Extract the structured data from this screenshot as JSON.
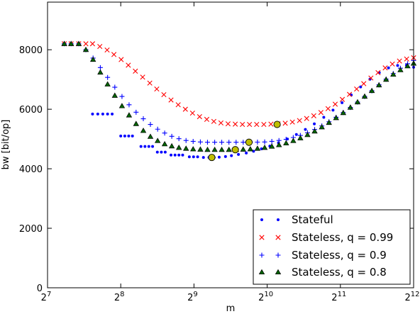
{
  "chart_data": {
    "type": "scatter",
    "xlabel": "m",
    "ylabel": "bw [bit/op]",
    "x_scale": "log2",
    "xlim": [
      128,
      4096
    ],
    "ylim": [
      0,
      9600
    ],
    "x_ticks": [
      {
        "value": 128,
        "base": "2",
        "exp": "7"
      },
      {
        "value": 256,
        "base": "2",
        "exp": "8"
      },
      {
        "value": 512,
        "base": "2",
        "exp": "9"
      },
      {
        "value": 1024,
        "base": "2",
        "exp": "10"
      },
      {
        "value": 2048,
        "base": "2",
        "exp": "11"
      },
      {
        "value": 4096,
        "base": "2",
        "exp": "12"
      }
    ],
    "y_ticks": [
      {
        "value": 0,
        "label": "0"
      },
      {
        "value": 2000,
        "label": "2000"
      },
      {
        "value": 4000,
        "label": "4000"
      },
      {
        "value": 6000,
        "label": "6000"
      },
      {
        "value": 8000,
        "label": "8000"
      }
    ],
    "grid": false,
    "legend_position": "bottom-right",
    "series": [
      {
        "name": "Stateful",
        "marker": "dot",
        "color": "#0000ff",
        "points": [
          [
            150,
            8200
          ],
          [
            160,
            8200
          ],
          [
            172,
            8200
          ],
          [
            196,
            5840
          ],
          [
            206,
            5840
          ],
          [
            216,
            5840
          ],
          [
            226,
            5840
          ],
          [
            236,
            5840
          ],
          [
            256,
            5100
          ],
          [
            266,
            5100
          ],
          [
            276,
            5100
          ],
          [
            286,
            5100
          ],
          [
            310,
            4750
          ],
          [
            322,
            4750
          ],
          [
            334,
            4750
          ],
          [
            346,
            4750
          ],
          [
            362,
            4560
          ],
          [
            376,
            4560
          ],
          [
            390,
            4560
          ],
          [
            412,
            4460
          ],
          [
            428,
            4460
          ],
          [
            444,
            4460
          ],
          [
            460,
            4460
          ],
          [
            490,
            4400
          ],
          [
            510,
            4400
          ],
          [
            530,
            4400
          ],
          [
            560,
            4380
          ],
          [
            590,
            4380
          ],
          [
            620,
            4380
          ],
          [
            650,
            4390
          ],
          [
            690,
            4410
          ],
          [
            730,
            4440
          ],
          [
            780,
            4480
          ],
          [
            840,
            4530
          ],
          [
            900,
            4590
          ],
          [
            970,
            4670
          ],
          [
            1050,
            4760
          ],
          [
            1140,
            4870
          ],
          [
            1240,
            5000
          ],
          [
            1350,
            5150
          ],
          [
            1470,
            5320
          ],
          [
            1600,
            5510
          ],
          [
            1750,
            5730
          ],
          [
            1910,
            5970
          ],
          [
            2080,
            6220
          ],
          [
            2270,
            6480
          ],
          [
            2480,
            6750
          ],
          [
            2710,
            7010
          ],
          [
            2960,
            7230
          ],
          [
            3230,
            7390
          ],
          [
            3520,
            7470
          ],
          [
            3830,
            7470
          ],
          [
            4096,
            7410
          ]
        ]
      },
      {
        "name": "Stateless, q = 0.99",
        "marker": "x",
        "color": "#ff0000",
        "points": [
          [
            150,
            8200
          ],
          [
            160,
            8200
          ],
          [
            172,
            8200
          ],
          [
            184,
            8200
          ],
          [
            196,
            8200
          ],
          [
            210,
            8110
          ],
          [
            225,
            7990
          ],
          [
            240,
            7840
          ],
          [
            257,
            7670
          ],
          [
            275,
            7480
          ],
          [
            294,
            7280
          ],
          [
            315,
            7080
          ],
          [
            337,
            6880
          ],
          [
            360,
            6680
          ],
          [
            385,
            6490
          ],
          [
            412,
            6310
          ],
          [
            441,
            6150
          ],
          [
            472,
            6000
          ],
          [
            505,
            5870
          ],
          [
            540,
            5750
          ],
          [
            578,
            5660
          ],
          [
            618,
            5590
          ],
          [
            661,
            5540
          ],
          [
            707,
            5510
          ],
          [
            757,
            5500
          ],
          [
            810,
            5490
          ],
          [
            866,
            5490
          ],
          [
            927,
            5490
          ],
          [
            992,
            5490
          ],
          [
            1061,
            5500
          ],
          [
            1135,
            5510
          ],
          [
            1215,
            5530
          ],
          [
            1300,
            5570
          ],
          [
            1391,
            5620
          ],
          [
            1488,
            5690
          ],
          [
            1592,
            5780
          ],
          [
            1703,
            5890
          ],
          [
            1822,
            6020
          ],
          [
            1950,
            6170
          ],
          [
            2086,
            6330
          ],
          [
            2232,
            6500
          ],
          [
            2388,
            6680
          ],
          [
            2555,
            6860
          ],
          [
            2734,
            7050
          ],
          [
            2925,
            7230
          ],
          [
            3130,
            7390
          ],
          [
            3349,
            7520
          ],
          [
            3583,
            7620
          ],
          [
            3834,
            7690
          ],
          [
            4096,
            7730
          ]
        ]
      },
      {
        "name": "Stateless, q = 0.9",
        "marker": "plus",
        "color": "#0000ff",
        "points": [
          [
            150,
            8200
          ],
          [
            160,
            8200
          ],
          [
            172,
            8200
          ],
          [
            184,
            8000
          ],
          [
            197,
            7720
          ],
          [
            211,
            7400
          ],
          [
            226,
            7070
          ],
          [
            242,
            6740
          ],
          [
            259,
            6430
          ],
          [
            277,
            6150
          ],
          [
            296,
            5900
          ],
          [
            317,
            5680
          ],
          [
            339,
            5490
          ],
          [
            363,
            5330
          ],
          [
            388,
            5200
          ],
          [
            415,
            5090
          ],
          [
            444,
            5010
          ],
          [
            475,
            4950
          ],
          [
            508,
            4920
          ],
          [
            544,
            4900
          ],
          [
            582,
            4890
          ],
          [
            623,
            4890
          ],
          [
            666,
            4890
          ],
          [
            713,
            4890
          ],
          [
            763,
            4890
          ],
          [
            816,
            4890
          ],
          [
            873,
            4890
          ],
          [
            934,
            4895
          ],
          [
            1000,
            4900
          ],
          [
            1070,
            4920
          ],
          [
            1145,
            4950
          ],
          [
            1225,
            4990
          ],
          [
            1311,
            5050
          ],
          [
            1402,
            5120
          ],
          [
            1500,
            5210
          ],
          [
            1605,
            5320
          ],
          [
            1718,
            5440
          ],
          [
            1838,
            5580
          ],
          [
            1966,
            5730
          ],
          [
            2104,
            5890
          ],
          [
            2251,
            6060
          ],
          [
            2409,
            6240
          ],
          [
            2577,
            6430
          ],
          [
            2758,
            6620
          ],
          [
            2951,
            6820
          ],
          [
            3157,
            7010
          ],
          [
            3378,
            7200
          ],
          [
            3615,
            7380
          ],
          [
            3868,
            7530
          ],
          [
            4096,
            7640
          ]
        ]
      },
      {
        "name": "Stateless, q = 0.8",
        "marker": "triangle",
        "color": "#006400",
        "points": [
          [
            150,
            8200
          ],
          [
            160,
            8200
          ],
          [
            172,
            8200
          ],
          [
            184,
            8000
          ],
          [
            197,
            7670
          ],
          [
            211,
            7240
          ],
          [
            226,
            6840
          ],
          [
            242,
            6460
          ],
          [
            259,
            6110
          ],
          [
            277,
            5800
          ],
          [
            296,
            5510
          ],
          [
            317,
            5280
          ],
          [
            339,
            5080
          ],
          [
            363,
            4940
          ],
          [
            388,
            4830
          ],
          [
            415,
            4760
          ],
          [
            444,
            4710
          ],
          [
            475,
            4680
          ],
          [
            508,
            4660
          ],
          [
            544,
            4650
          ],
          [
            582,
            4640
          ],
          [
            623,
            4640
          ],
          [
            666,
            4640
          ],
          [
            713,
            4640
          ],
          [
            763,
            4640
          ],
          [
            816,
            4650
          ],
          [
            873,
            4660
          ],
          [
            934,
            4680
          ],
          [
            1000,
            4710
          ],
          [
            1070,
            4750
          ],
          [
            1145,
            4800
          ],
          [
            1225,
            4860
          ],
          [
            1311,
            4940
          ],
          [
            1402,
            5030
          ],
          [
            1500,
            5140
          ],
          [
            1605,
            5260
          ],
          [
            1718,
            5400
          ],
          [
            1838,
            5550
          ],
          [
            1966,
            5710
          ],
          [
            2104,
            5880
          ],
          [
            2251,
            6060
          ],
          [
            2409,
            6240
          ],
          [
            2577,
            6430
          ],
          [
            2758,
            6620
          ],
          [
            2951,
            6810
          ],
          [
            3157,
            7000
          ],
          [
            3378,
            7170
          ],
          [
            3615,
            7320
          ],
          [
            3868,
            7450
          ],
          [
            4096,
            7540
          ]
        ]
      }
    ],
    "highlights": [
      {
        "x": 606,
        "y": 4380,
        "color": "#bfbf00"
      },
      {
        "x": 757,
        "y": 4640,
        "color": "#bfbf00"
      },
      {
        "x": 862,
        "y": 4890,
        "color": "#bfbf00"
      },
      {
        "x": 1125,
        "y": 5490,
        "color": "#bfbf00"
      }
    ]
  }
}
